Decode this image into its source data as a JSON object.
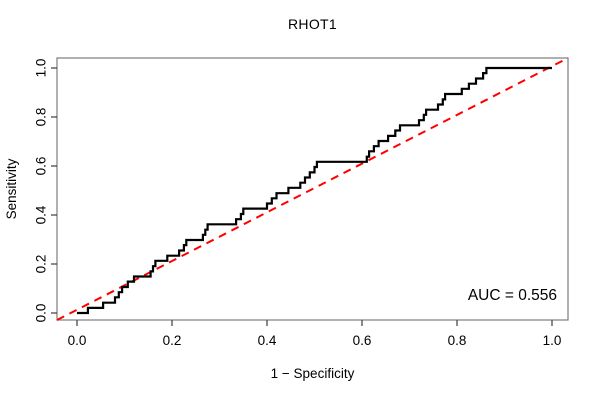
{
  "chart_data": {
    "type": "line",
    "subtype": "roc-step-curve",
    "title": "RHOT1",
    "xlabel": "1 − Specificity",
    "ylabel": "Sensitivity",
    "auc_label": "AUC = 0.556",
    "auc_value": 0.556,
    "xlim": [
      0,
      1
    ],
    "ylim": [
      0,
      1
    ],
    "grid": "off",
    "legend": "none",
    "x_ticks": [
      {
        "v": 0.0,
        "label": "0.0"
      },
      {
        "v": 0.2,
        "label": "0.2"
      },
      {
        "v": 0.4,
        "label": "0.4"
      },
      {
        "v": 0.6,
        "label": "0.6"
      },
      {
        "v": 0.8,
        "label": "0.8"
      },
      {
        "v": 1.0,
        "label": "1.0"
      }
    ],
    "y_ticks": [
      {
        "v": 0.0,
        "label": "0.0"
      },
      {
        "v": 0.2,
        "label": "0.2"
      },
      {
        "v": 0.4,
        "label": "0.4"
      },
      {
        "v": 0.6,
        "label": "0.6"
      },
      {
        "v": 0.8,
        "label": "0.8"
      },
      {
        "v": 1.0,
        "label": "1.0"
      }
    ],
    "diagonal": {
      "from": [
        0,
        0
      ],
      "to": [
        1,
        1
      ],
      "style": "dashed"
    },
    "colors": {
      "curve": "#000000",
      "diagonal": "#ff0000",
      "box": "#7d7d7d",
      "tick": "#3c3c3c",
      "text": "#000000",
      "background": "#ffffff"
    },
    "roc_points": [
      [
        0.0,
        0.0
      ],
      [
        0.023,
        0.0
      ],
      [
        0.023,
        0.021
      ],
      [
        0.055,
        0.021
      ],
      [
        0.055,
        0.042
      ],
      [
        0.08,
        0.042
      ],
      [
        0.08,
        0.064
      ],
      [
        0.088,
        0.064
      ],
      [
        0.088,
        0.085
      ],
      [
        0.095,
        0.085
      ],
      [
        0.095,
        0.106
      ],
      [
        0.107,
        0.106
      ],
      [
        0.107,
        0.128
      ],
      [
        0.12,
        0.128
      ],
      [
        0.12,
        0.149
      ],
      [
        0.155,
        0.149
      ],
      [
        0.155,
        0.17
      ],
      [
        0.16,
        0.17
      ],
      [
        0.16,
        0.191
      ],
      [
        0.165,
        0.191
      ],
      [
        0.165,
        0.213
      ],
      [
        0.19,
        0.213
      ],
      [
        0.19,
        0.234
      ],
      [
        0.215,
        0.234
      ],
      [
        0.215,
        0.255
      ],
      [
        0.225,
        0.255
      ],
      [
        0.225,
        0.277
      ],
      [
        0.23,
        0.277
      ],
      [
        0.23,
        0.298
      ],
      [
        0.265,
        0.298
      ],
      [
        0.265,
        0.319
      ],
      [
        0.27,
        0.319
      ],
      [
        0.27,
        0.34
      ],
      [
        0.275,
        0.34
      ],
      [
        0.275,
        0.362
      ],
      [
        0.335,
        0.362
      ],
      [
        0.335,
        0.383
      ],
      [
        0.345,
        0.383
      ],
      [
        0.345,
        0.404
      ],
      [
        0.35,
        0.404
      ],
      [
        0.35,
        0.426
      ],
      [
        0.4,
        0.426
      ],
      [
        0.4,
        0.447
      ],
      [
        0.41,
        0.447
      ],
      [
        0.41,
        0.468
      ],
      [
        0.42,
        0.468
      ],
      [
        0.42,
        0.489
      ],
      [
        0.445,
        0.489
      ],
      [
        0.445,
        0.511
      ],
      [
        0.47,
        0.511
      ],
      [
        0.47,
        0.532
      ],
      [
        0.48,
        0.532
      ],
      [
        0.48,
        0.553
      ],
      [
        0.49,
        0.553
      ],
      [
        0.49,
        0.574
      ],
      [
        0.5,
        0.574
      ],
      [
        0.5,
        0.596
      ],
      [
        0.505,
        0.596
      ],
      [
        0.505,
        0.617
      ],
      [
        0.61,
        0.617
      ],
      [
        0.61,
        0.638
      ],
      [
        0.615,
        0.638
      ],
      [
        0.615,
        0.66
      ],
      [
        0.625,
        0.66
      ],
      [
        0.625,
        0.681
      ],
      [
        0.635,
        0.681
      ],
      [
        0.635,
        0.702
      ],
      [
        0.655,
        0.702
      ],
      [
        0.655,
        0.723
      ],
      [
        0.67,
        0.723
      ],
      [
        0.67,
        0.745
      ],
      [
        0.68,
        0.745
      ],
      [
        0.68,
        0.766
      ],
      [
        0.72,
        0.766
      ],
      [
        0.72,
        0.787
      ],
      [
        0.73,
        0.787
      ],
      [
        0.73,
        0.809
      ],
      [
        0.735,
        0.809
      ],
      [
        0.735,
        0.83
      ],
      [
        0.76,
        0.83
      ],
      [
        0.76,
        0.851
      ],
      [
        0.77,
        0.851
      ],
      [
        0.77,
        0.872
      ],
      [
        0.775,
        0.872
      ],
      [
        0.775,
        0.894
      ],
      [
        0.81,
        0.894
      ],
      [
        0.81,
        0.915
      ],
      [
        0.825,
        0.915
      ],
      [
        0.825,
        0.936
      ],
      [
        0.84,
        0.936
      ],
      [
        0.84,
        0.957
      ],
      [
        0.855,
        0.957
      ],
      [
        0.855,
        0.979
      ],
      [
        0.862,
        0.979
      ],
      [
        0.862,
        1.0
      ],
      [
        1.0,
        1.0
      ]
    ]
  }
}
